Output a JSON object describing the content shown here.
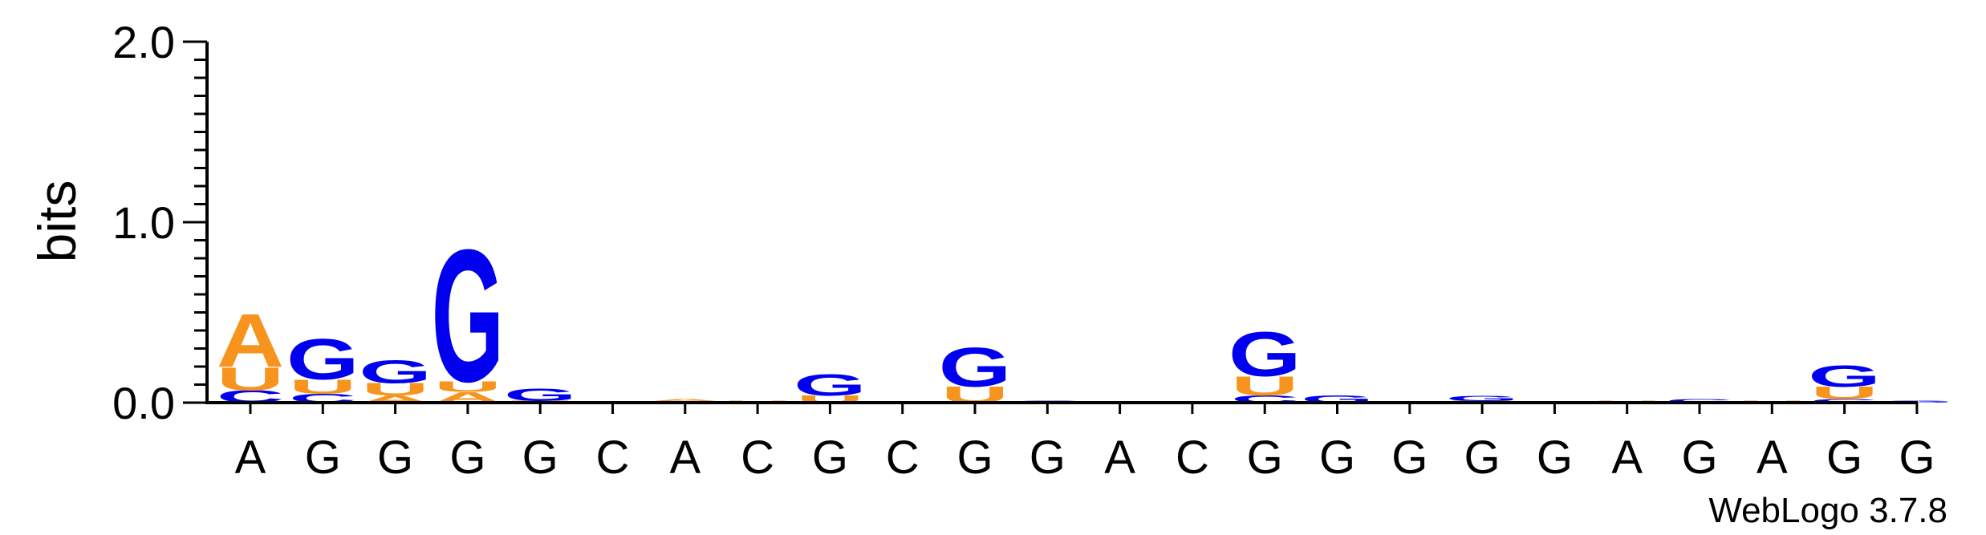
{
  "chart_data": {
    "type": "sequence-logo",
    "ylabel": "bits",
    "ylim": [
      0,
      2.0
    ],
    "yticks": [
      "0.0",
      "1.0",
      "2.0"
    ],
    "colors": {
      "A": "#f7941d",
      "U": "#f7941d",
      "G": "#0000ee",
      "C": "#0000ee"
    },
    "positions": [
      {
        "label": "A",
        "stack": [
          [
            "C",
            0.07
          ],
          [
            "U",
            0.13
          ],
          [
            "A",
            0.3
          ]
        ]
      },
      {
        "label": "G",
        "stack": [
          [
            "C",
            0.05
          ],
          [
            "U",
            0.08
          ],
          [
            "G",
            0.23
          ]
        ]
      },
      {
        "label": "G",
        "stack": [
          [
            "A",
            0.04
          ],
          [
            "U",
            0.07
          ],
          [
            "G",
            0.13
          ]
        ]
      },
      {
        "label": "G",
        "stack": [
          [
            "A",
            0.06
          ],
          [
            "U",
            0.06
          ],
          [
            "G",
            0.75
          ]
        ]
      },
      {
        "label": "G",
        "stack": [
          [
            "U",
            0.01
          ],
          [
            "G",
            0.07
          ]
        ]
      },
      {
        "label": "C",
        "stack": []
      },
      {
        "label": "A",
        "stack": [
          [
            "U",
            0.01
          ],
          [
            "A",
            0.01
          ]
        ]
      },
      {
        "label": "C",
        "stack": [
          [
            "U",
            0.01
          ]
        ]
      },
      {
        "label": "G",
        "stack": [
          [
            "U",
            0.04
          ],
          [
            "G",
            0.12
          ]
        ]
      },
      {
        "label": "C",
        "stack": []
      },
      {
        "label": "G",
        "stack": [
          [
            "U",
            0.09
          ],
          [
            "G",
            0.22
          ]
        ]
      },
      {
        "label": "G",
        "stack": [
          [
            "C",
            0.01
          ]
        ]
      },
      {
        "label": "A",
        "stack": []
      },
      {
        "label": "C",
        "stack": []
      },
      {
        "label": "G",
        "stack": [
          [
            "C",
            0.04
          ],
          [
            "U",
            0.11
          ],
          [
            "G",
            0.25
          ]
        ]
      },
      {
        "label": "G",
        "stack": [
          [
            "G",
            0.04
          ]
        ]
      },
      {
        "label": "G",
        "stack": []
      },
      {
        "label": "G",
        "stack": [
          [
            "U",
            0.01
          ],
          [
            "G",
            0.03
          ]
        ]
      },
      {
        "label": "G",
        "stack": []
      },
      {
        "label": "A",
        "stack": [
          [
            "U",
            0.01
          ]
        ]
      },
      {
        "label": "G",
        "stack": [
          [
            "C",
            0.02
          ]
        ]
      },
      {
        "label": "A",
        "stack": [
          [
            "U",
            0.01
          ]
        ]
      },
      {
        "label": "G",
        "stack": [
          [
            "C",
            0.02
          ],
          [
            "U",
            0.07
          ],
          [
            "G",
            0.12
          ]
        ]
      },
      {
        "label": "G",
        "stack": [
          [
            "G",
            0.01
          ]
        ]
      }
    ]
  },
  "credit": "WebLogo 3.7.8"
}
